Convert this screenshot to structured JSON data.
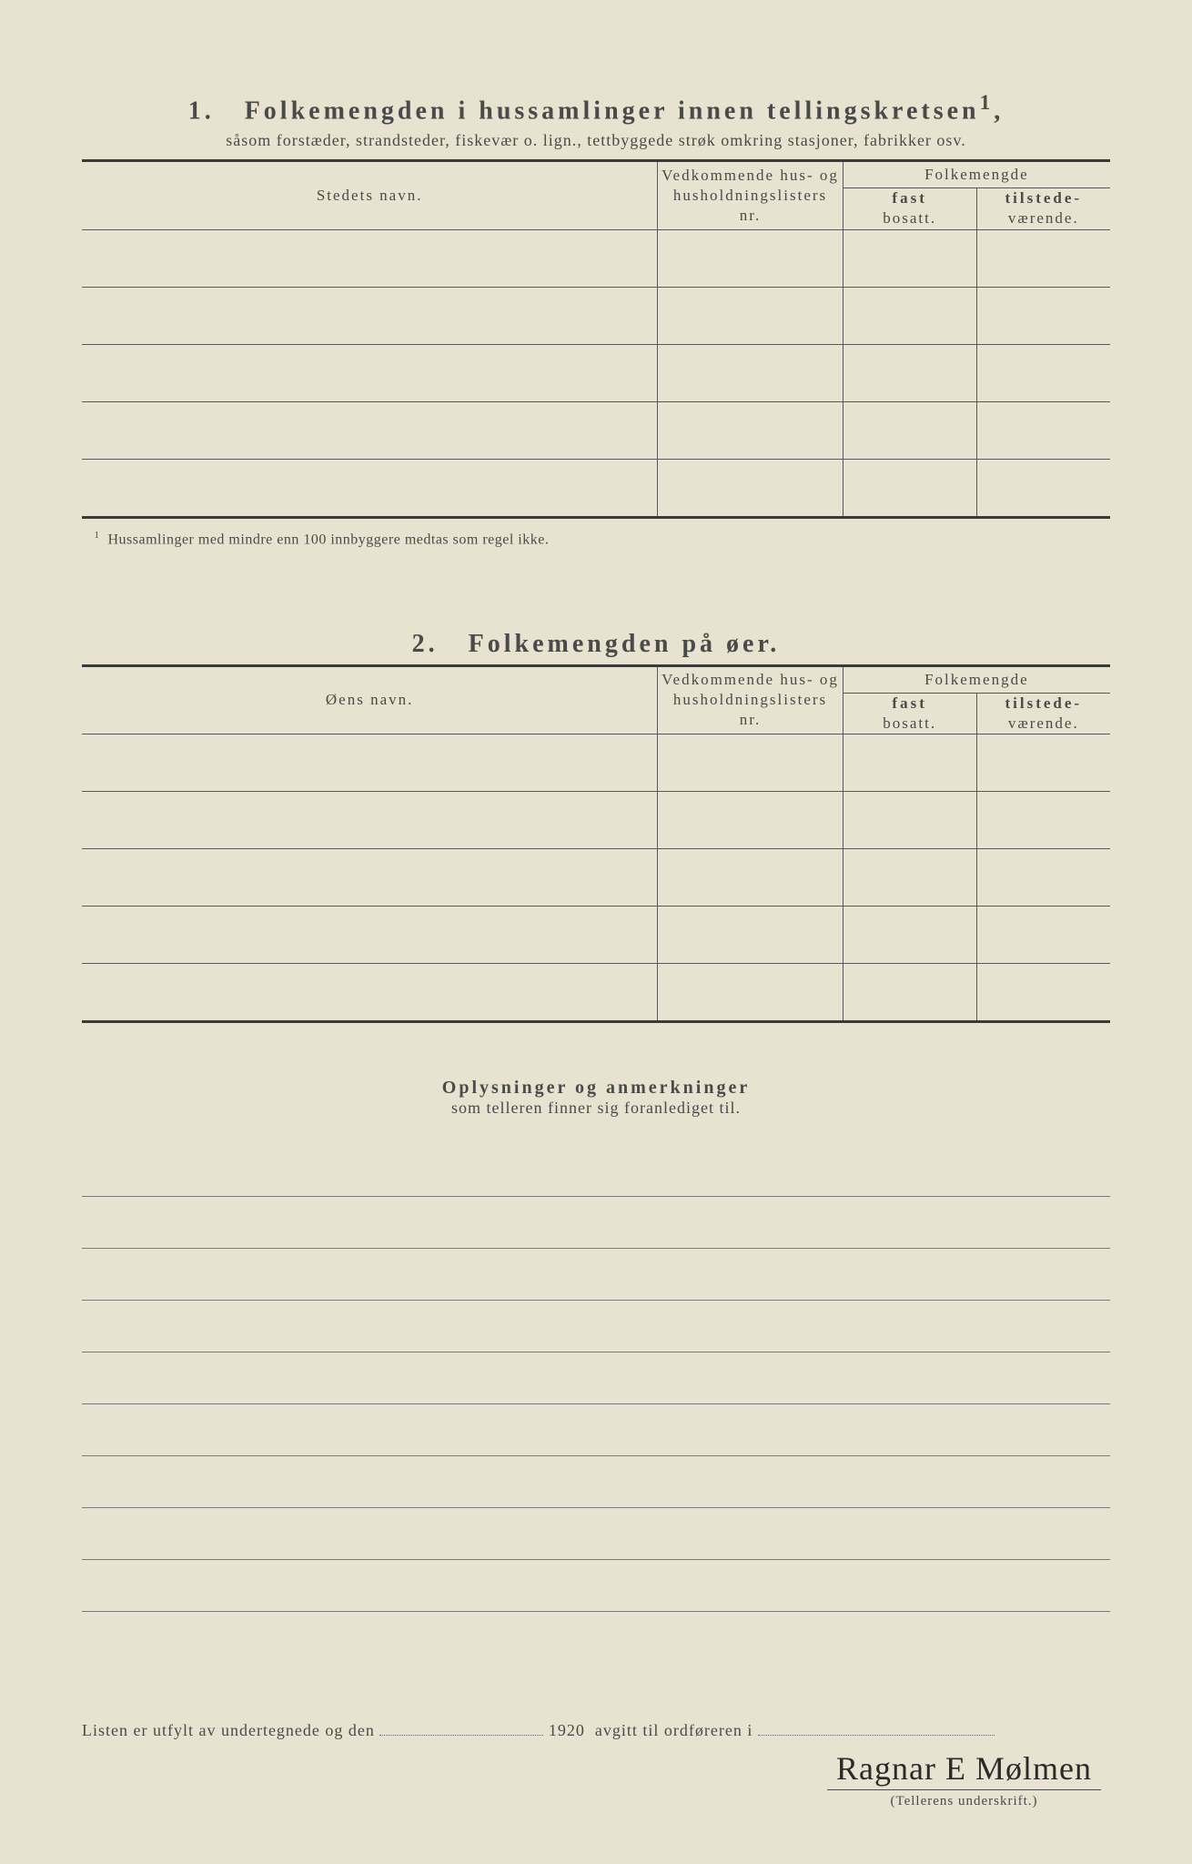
{
  "section1": {
    "number": "1.",
    "title": "Folkemengden i hussamlinger innen tellingskretsen",
    "title_sup": "1",
    "subtitle": "såsom forstæder, strandsteder, fiskevær o. lign., tettbyggede strøk omkring stasjoner, fabrikker osv.",
    "headers": {
      "name": "Stedets navn.",
      "ref_l1": "Vedkommende hus- og",
      "ref_l2": "husholdningslisters",
      "ref_l3": "nr.",
      "pop": "Folkemengde",
      "fast_l1": "fast",
      "fast_l2": "bosatt.",
      "til_l1": "tilstede-",
      "til_l2": "værende."
    },
    "footnote_marker": "1",
    "footnote": "Hussamlinger med mindre enn 100 innbyggere medtas som regel ikke.",
    "row_count": 5
  },
  "section2": {
    "number": "2.",
    "title": "Folkemengden på øer.",
    "headers": {
      "name": "Øens navn.",
      "ref_l1": "Vedkommende hus- og",
      "ref_l2": "husholdningslisters",
      "ref_l3": "nr.",
      "pop": "Folkemengde",
      "fast_l1": "fast",
      "fast_l2": "bosatt.",
      "til_l1": "tilstede-",
      "til_l2": "værende."
    },
    "row_count": 5
  },
  "remarks": {
    "title": "Oplysninger og anmerkninger",
    "subtitle": "som telleren finner sig foranlediget til.",
    "line_count": 9
  },
  "bottom": {
    "text_a": "Listen er utfylt av undertegnede og den",
    "year": "1920",
    "text_b": "avgitt til ordføreren i"
  },
  "signature": {
    "text": "Ragnar E Mølmen",
    "label": "(Tellerens underskrift.)"
  },
  "colors": {
    "paper": "#e8e2d0",
    "ink": "#4a4a4a",
    "rule": "#3a3a3a"
  }
}
